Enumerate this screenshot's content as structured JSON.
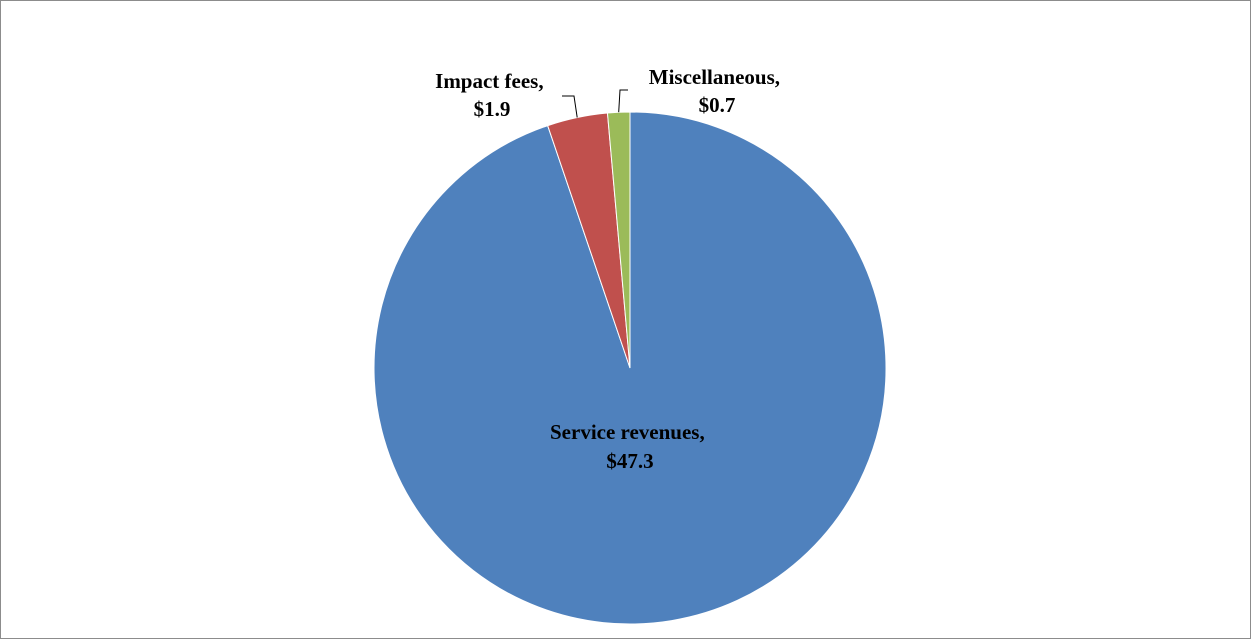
{
  "chart_data": {
    "type": "pie",
    "title": "",
    "start_angle_deg": 0,
    "direction": "clockwise",
    "slices": [
      {
        "label": "Service revenues",
        "value_text": "$47.3",
        "value": 47.3,
        "color": "#4f81bd"
      },
      {
        "label": "Impact fees",
        "value_text": "$1.9",
        "value": 1.9,
        "color": "#c0504d"
      },
      {
        "label": "Miscellaneous",
        "value_text": "$0.7",
        "value": 0.7,
        "color": "#9bbb59"
      }
    ],
    "data_labels": "outside-with-leader-lines",
    "legend": "none"
  }
}
